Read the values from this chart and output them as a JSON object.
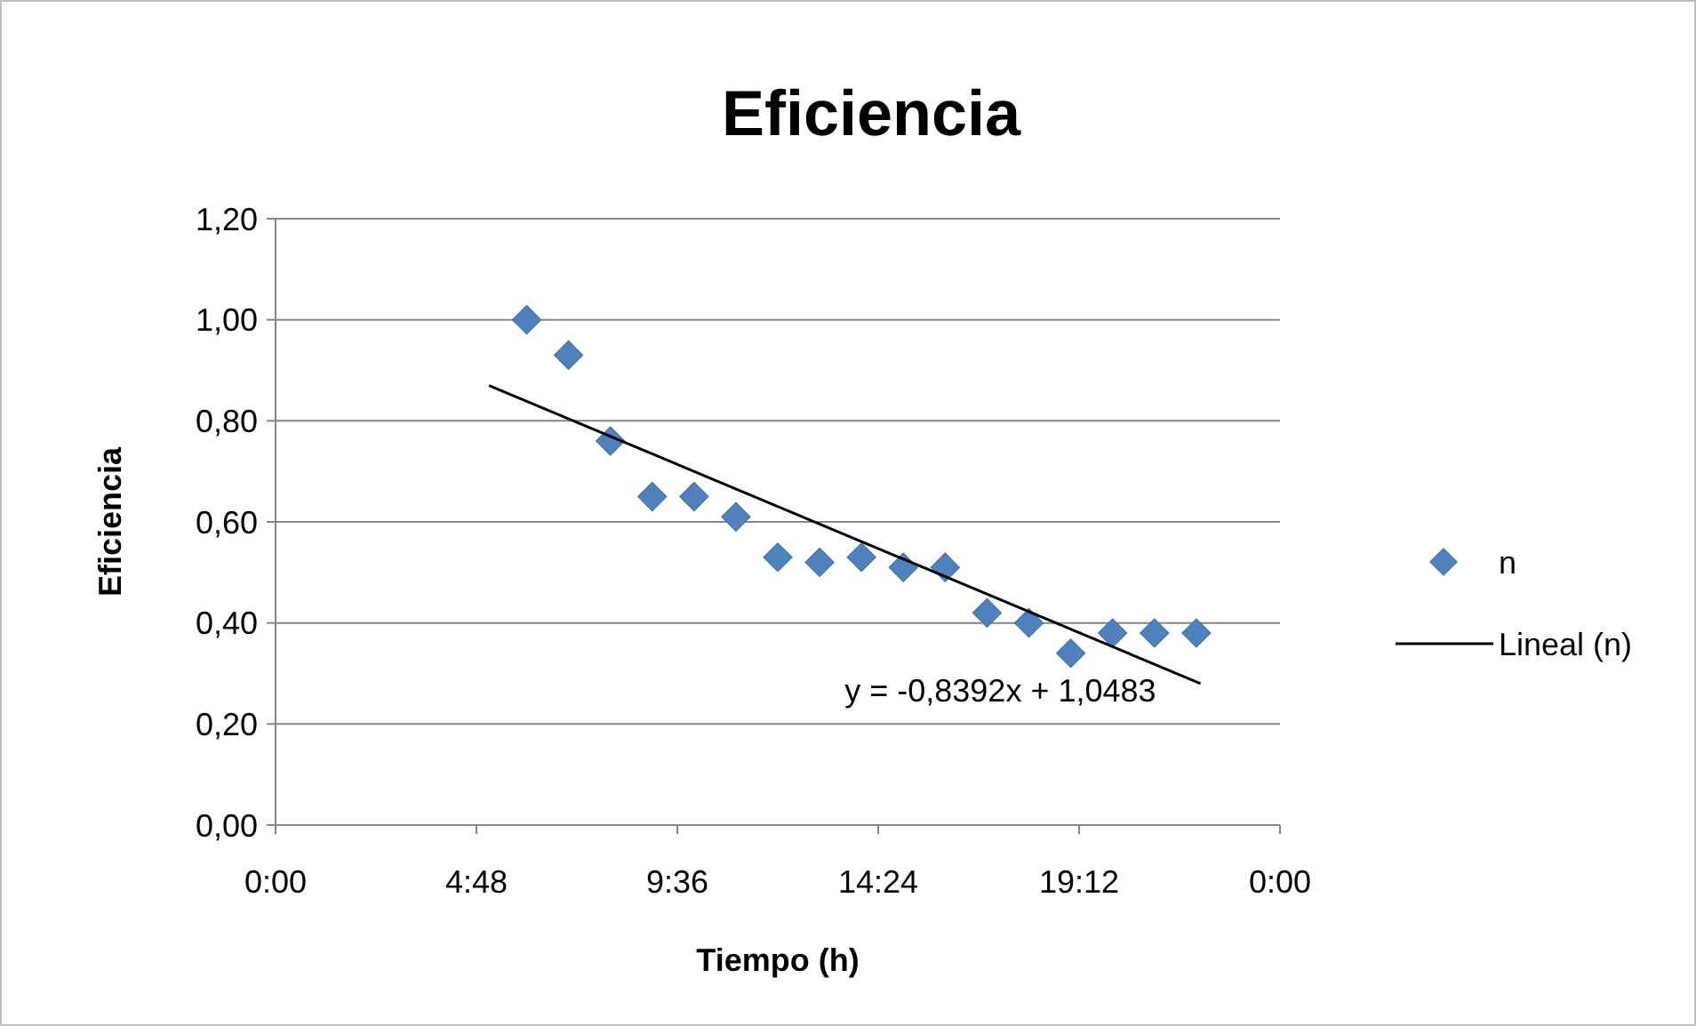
{
  "chart_data": {
    "type": "scatter",
    "title": "Eficiencia",
    "xlabel": "Tiempo (h)",
    "ylabel": "Eficiencia",
    "xlim": [
      0,
      24
    ],
    "xticks": [
      {
        "value": 0,
        "label": "0:00"
      },
      {
        "value": 4.8,
        "label": "4:48"
      },
      {
        "value": 9.6,
        "label": "9:36"
      },
      {
        "value": 14.4,
        "label": "14:24"
      },
      {
        "value": 19.2,
        "label": "19:12"
      },
      {
        "value": 24,
        "label": "0:00"
      }
    ],
    "ylim": [
      0,
      1.2
    ],
    "yticks": [
      {
        "value": 0,
        "label": "0,00"
      },
      {
        "value": 0.2,
        "label": "0,20"
      },
      {
        "value": 0.4,
        "label": "0,40"
      },
      {
        "value": 0.6,
        "label": "0,60"
      },
      {
        "value": 0.8,
        "label": "0,80"
      },
      {
        "value": 1,
        "label": "1,00"
      },
      {
        "value": 1.2,
        "label": "1,20"
      }
    ],
    "grid": "y",
    "legend": "right",
    "series": [
      {
        "name": "n",
        "marker": "diamond",
        "color": "#4f81bd",
        "x": [
          6,
          7,
          8,
          9,
          10,
          11,
          12,
          13,
          14,
          15,
          16,
          17,
          18,
          19,
          20,
          21,
          22
        ],
        "values": [
          1.0,
          0.93,
          0.76,
          0.65,
          0.65,
          0.61,
          0.53,
          0.52,
          0.53,
          0.51,
          0.51,
          0.42,
          0.4,
          0.34,
          0.38,
          0.38,
          0.38
        ]
      },
      {
        "name": "Lineal (n)",
        "type": "line",
        "color": "#000000",
        "x": [
          5.1,
          22.1
        ],
        "values": [
          0.87,
          0.28
        ]
      }
    ],
    "annotations": [
      "y = -0,8392x + 1,0483"
    ]
  }
}
